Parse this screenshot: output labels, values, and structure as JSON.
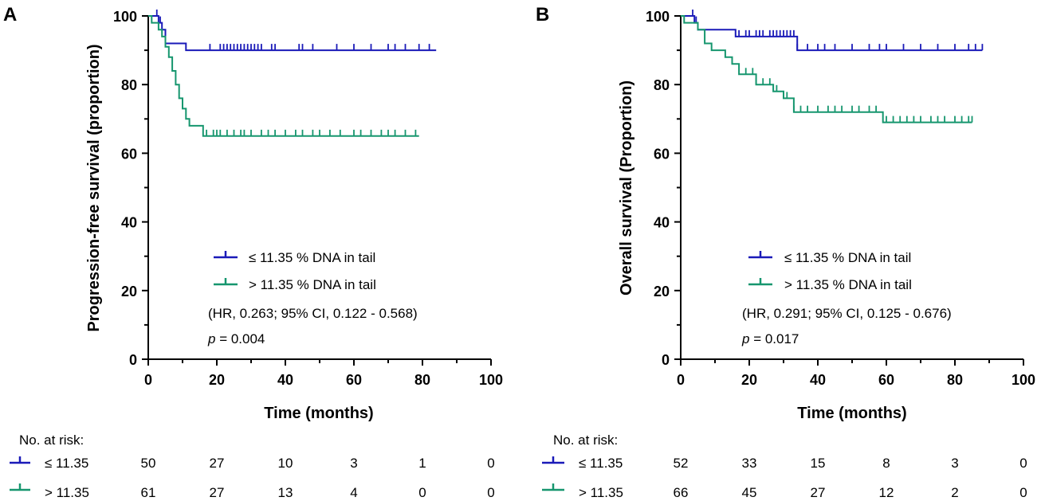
{
  "colors": {
    "low": "#1a1ab8",
    "high": "#16966e",
    "axis": "#000000"
  },
  "risk_header": "No. at risk:",
  "chart_data": [
    {
      "type": "line",
      "panel_label": "A",
      "title": "",
      "xlabel": "Time (months)",
      "ylabel": "Progression-free survival (proportion)",
      "xlim": [
        0,
        100
      ],
      "ylim": [
        0,
        100
      ],
      "xticks": [
        "0",
        "20",
        "40",
        "60",
        "80",
        "100"
      ],
      "yticks": [
        "0",
        "20",
        "40",
        "60",
        "80",
        "100"
      ],
      "series": [
        {
          "name": "≤ 11.35 % DNA in tail",
          "color_key": "low",
          "steps": [
            [
              0,
              100
            ],
            [
              3,
              100
            ],
            [
              3,
              98
            ],
            [
              4,
              98
            ],
            [
              4,
              96
            ],
            [
              5,
              96
            ],
            [
              5,
              92
            ],
            [
              11,
              92
            ],
            [
              11,
              90
            ],
            [
              84,
              90
            ]
          ],
          "censors": [
            2.5,
            3.5,
            18,
            21,
            22,
            23,
            24,
            25,
            26,
            27,
            28,
            29,
            30,
            31,
            32,
            33,
            36,
            37,
            44,
            45,
            48,
            55,
            60,
            65,
            70,
            72,
            75,
            79,
            82
          ]
        },
        {
          "name": "> 11.35 % DNA in tail",
          "color_key": "high",
          "steps": [
            [
              0,
              100
            ],
            [
              1,
              100
            ],
            [
              1,
              98
            ],
            [
              3,
              98
            ],
            [
              3,
              96
            ],
            [
              4,
              96
            ],
            [
              4,
              94
            ],
            [
              5,
              94
            ],
            [
              5,
              91
            ],
            [
              6,
              91
            ],
            [
              6,
              88
            ],
            [
              7,
              88
            ],
            [
              7,
              84
            ],
            [
              8,
              84
            ],
            [
              8,
              80
            ],
            [
              9,
              80
            ],
            [
              9,
              76
            ],
            [
              10,
              76
            ],
            [
              10,
              73
            ],
            [
              11,
              73
            ],
            [
              11,
              70
            ],
            [
              12,
              70
            ],
            [
              12,
              68
            ],
            [
              16,
              68
            ],
            [
              16,
              65
            ],
            [
              79,
              65
            ]
          ],
          "censors": [
            17,
            19,
            20,
            21,
            23,
            25,
            27,
            28,
            30,
            33,
            35,
            37,
            40,
            43,
            45,
            48,
            50,
            53,
            56,
            60,
            62,
            65,
            68,
            70,
            72,
            75,
            78
          ]
        }
      ],
      "legend": [
        "≤ 11.35 % DNA in tail",
        "> 11.35 % DNA in tail"
      ],
      "annotations": {
        "hr": "(HR, 0.263; 95% CI, 0.122 - 0.568)",
        "p_label": "p",
        "p_value": " = 0.004"
      },
      "risk_table": {
        "rows": [
          {
            "label": "≤ 11.35",
            "color_key": "low",
            "values": [
              "50",
              "27",
              "10",
              "3",
              "1",
              "0"
            ]
          },
          {
            "label": "> 11.35",
            "color_key": "high",
            "values": [
              "61",
              "27",
              "13",
              "4",
              "0",
              "0"
            ]
          }
        ]
      }
    },
    {
      "type": "line",
      "panel_label": "B",
      "title": "",
      "xlabel": "Time (months)",
      "ylabel": "Overall survival  (Proportion)",
      "xlim": [
        0,
        100
      ],
      "ylim": [
        0,
        100
      ],
      "xticks": [
        "0",
        "20",
        "40",
        "60",
        "80",
        "100"
      ],
      "yticks": [
        "0",
        "20",
        "40",
        "60",
        "80",
        "100"
      ],
      "series": [
        {
          "name": "≤ 11.35 % DNA in tail",
          "color_key": "low",
          "steps": [
            [
              0,
              100
            ],
            [
              4,
              100
            ],
            [
              4,
              98
            ],
            [
              5,
              98
            ],
            [
              5,
              96
            ],
            [
              16,
              96
            ],
            [
              16,
              94
            ],
            [
              34,
              94
            ],
            [
              34,
              90
            ],
            [
              88,
              90
            ]
          ],
          "censors": [
            3.5,
            4.5,
            17,
            19,
            20,
            22,
            23,
            24,
            26,
            27,
            28,
            29,
            30,
            31,
            32,
            33,
            34,
            37,
            40,
            42,
            45,
            50,
            55,
            58,
            60,
            65,
            70,
            75,
            80,
            84,
            86,
            88
          ]
        },
        {
          "name": "> 11.35 % DNA in tail",
          "color_key": "high",
          "steps": [
            [
              0,
              100
            ],
            [
              1,
              100
            ],
            [
              1,
              98
            ],
            [
              5,
              98
            ],
            [
              5,
              96
            ],
            [
              7,
              96
            ],
            [
              7,
              92
            ],
            [
              9,
              92
            ],
            [
              9,
              90
            ],
            [
              13,
              90
            ],
            [
              13,
              88
            ],
            [
              15,
              88
            ],
            [
              15,
              86
            ],
            [
              17,
              86
            ],
            [
              17,
              83
            ],
            [
              22,
              83
            ],
            [
              22,
              80
            ],
            [
              27,
              80
            ],
            [
              27,
              78
            ],
            [
              30,
              78
            ],
            [
              30,
              76
            ],
            [
              33,
              76
            ],
            [
              33,
              72
            ],
            [
              59,
              72
            ],
            [
              59,
              69
            ],
            [
              85,
              69
            ]
          ],
          "censors": [
            19,
            21,
            22,
            24,
            26,
            28,
            31,
            33,
            35,
            37,
            40,
            43,
            45,
            47,
            50,
            52,
            55,
            57,
            60,
            62,
            64,
            66,
            68,
            70,
            73,
            75,
            77,
            80,
            82,
            84,
            85
          ]
        }
      ],
      "legend": [
        "≤ 11.35 % DNA in tail",
        "> 11.35 % DNA in tail"
      ],
      "annotations": {
        "hr": "(HR, 0.291; 95% CI, 0.125 - 0.676)",
        "p_label": "p",
        "p_value": " = 0.017"
      },
      "risk_table": {
        "rows": [
          {
            "label": "≤ 11.35",
            "color_key": "low",
            "values": [
              "52",
              "33",
              "15",
              "8",
              "3",
              "0"
            ]
          },
          {
            "label": "> 11.35",
            "color_key": "high",
            "values": [
              "66",
              "45",
              "27",
              "12",
              "2",
              "0"
            ]
          }
        ]
      }
    }
  ]
}
